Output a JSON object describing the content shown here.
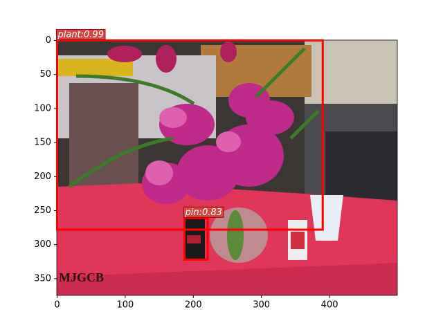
{
  "chart_data": {
    "type": "detection",
    "xlim": [
      -0.5,
      499.5
    ],
    "ylim": [
      374.5,
      -0.5
    ],
    "xticks": [
      0,
      100,
      200,
      300,
      400
    ],
    "yticks": [
      0,
      50,
      100,
      150,
      200,
      250,
      300,
      350
    ],
    "watermark": "MJGCB",
    "boxes": [
      {
        "label": "plant:0.99",
        "color": "#ff0000",
        "x": [
          0,
          390
        ],
        "y": [
          0,
          278
        ]
      },
      {
        "label": "pin:0.83",
        "color": "#ff0000",
        "x": [
          187,
          221
        ],
        "y": [
          261,
          322
        ]
      }
    ]
  }
}
